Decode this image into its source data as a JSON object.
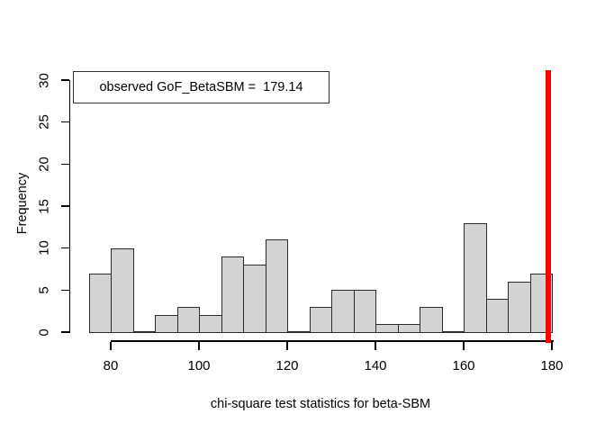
{
  "chart_data": {
    "type": "bar",
    "subtype": "histogram",
    "title": "",
    "xlabel": "chi-square test statistics for beta-SBM",
    "ylabel": "Frequency",
    "bin_start": 75,
    "bin_width": 5,
    "counts": [
      7,
      10,
      0,
      2,
      3,
      2,
      9,
      8,
      11,
      0,
      3,
      5,
      5,
      1,
      1,
      3,
      0,
      13,
      4,
      6,
      7
    ],
    "x_ticks": [
      80,
      100,
      120,
      140,
      160,
      180
    ],
    "y_ticks": [
      0,
      5,
      10,
      15,
      20,
      25,
      30
    ],
    "xlim": [
      75,
      180
    ],
    "ylim": [
      0,
      30
    ],
    "grid": false,
    "legend_position": "top-left",
    "colors": {
      "bar_fill": "#d3d3d3",
      "bar_border": "#2b2b2b",
      "axis": "#000000",
      "observed_line": "#ff0000"
    },
    "observed_line": {
      "label": "observed GoF_BetaSBM",
      "value": 179.14
    },
    "legend": {
      "text": "observed GoF_BetaSBM =  179.14"
    }
  }
}
